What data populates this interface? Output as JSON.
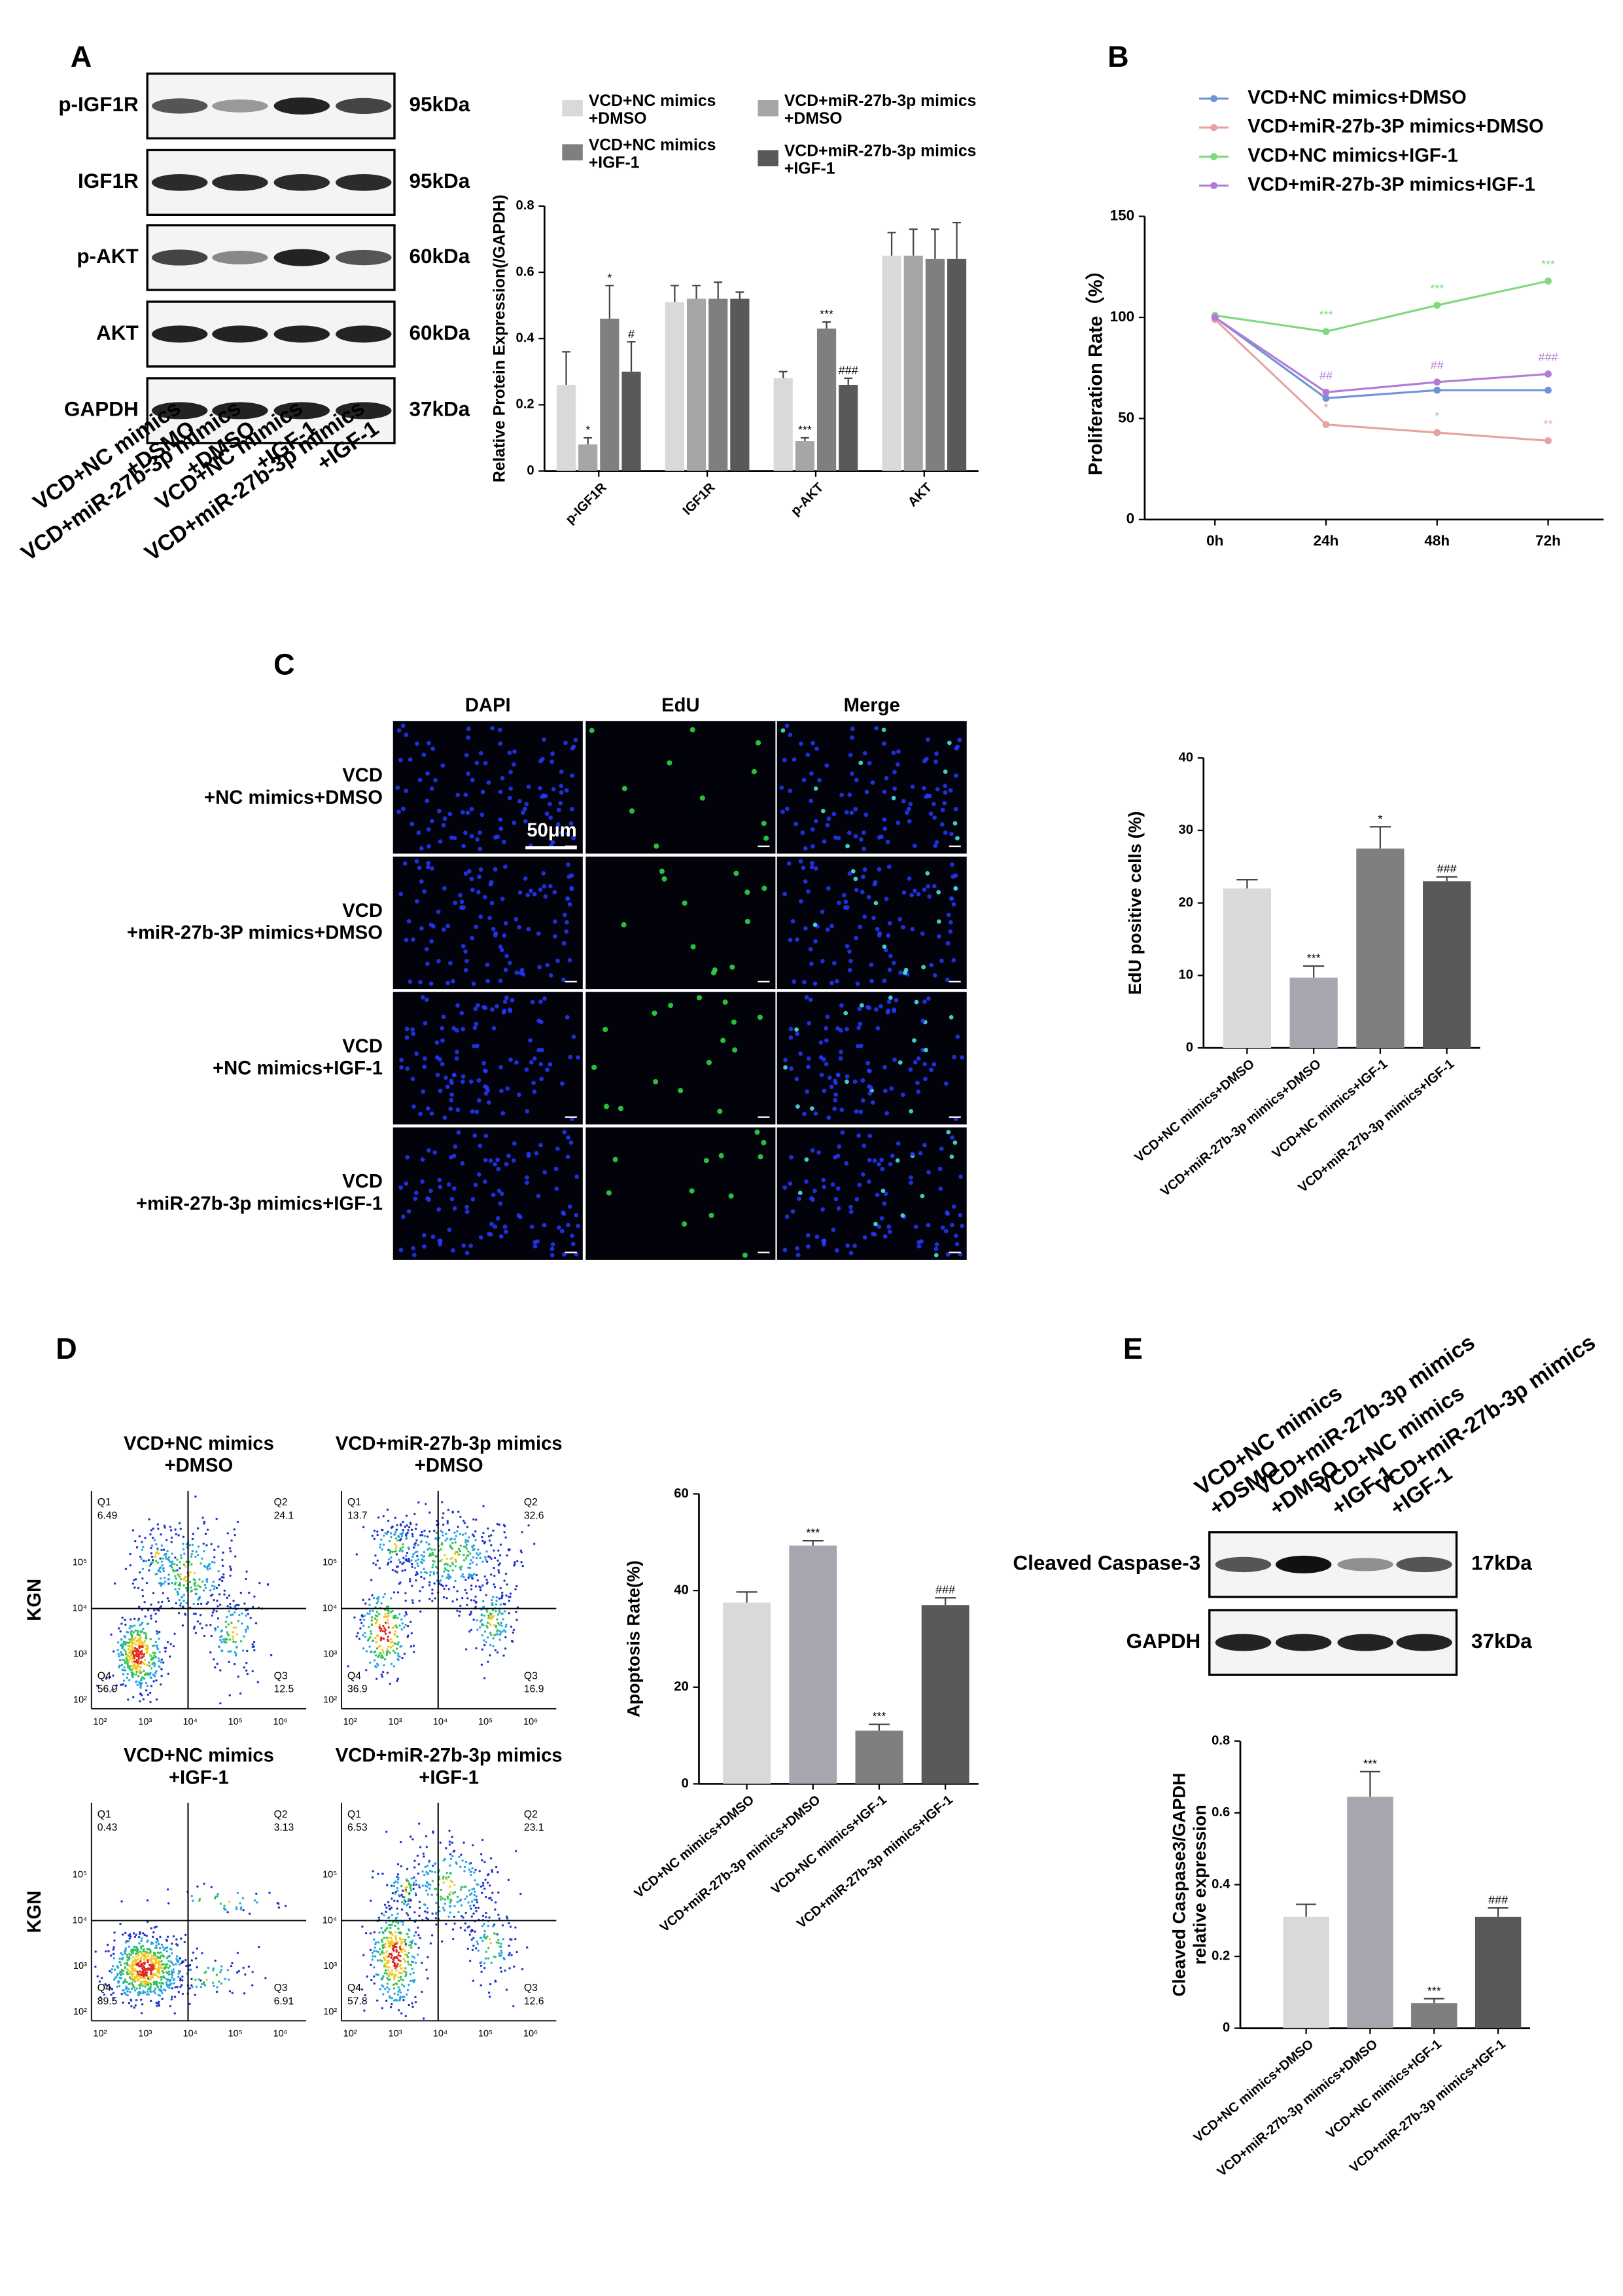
{
  "panel_labels": [
    "A",
    "B",
    "C",
    "D",
    "E"
  ],
  "blot_a": {
    "lanes": [
      "VCD+NC mimics\n+DSMO",
      "VCD+miR-27b-3p mimics\n+DMSO",
      "VCD+NC mimics\n+IGF-1",
      "VCD+miR-27b-3p mimics\n+IGF-1"
    ],
    "rows": [
      {
        "label": "p-IGF1R",
        "size": "95kDa"
      },
      {
        "label": "IGF1R",
        "size": "95kDa"
      },
      {
        "label": "p-AKT",
        "size": "60kDa"
      },
      {
        "label": "AKT",
        "size": "60kDa"
      },
      {
        "label": "GAPDH",
        "size": "37kDa"
      }
    ]
  },
  "microscopy": {
    "columns": [
      "DAPI",
      "EdU",
      "Merge"
    ],
    "rows": [
      "VCD\n+NC mimics+DMSO",
      "VCD\n+miR-27b-3P mimics+DMSO",
      "VCD\n+NC mimics+IGF-1",
      "VCD\n+miR-27b-3p mimics+IGF-1"
    ],
    "scale_bar": "50μm"
  },
  "flow": {
    "row_labels": [
      "KGN",
      "KGN"
    ],
    "axis_ticks": [
      "10²",
      "10³",
      "10⁴",
      "10⁵",
      "10⁶"
    ],
    "plots": [
      {
        "title": "VCD+NC mimics\n+DMSO",
        "quadrants": [
          {
            "label": "Q1",
            "value": 6.49
          },
          {
            "label": "Q2",
            "value": 24.1
          },
          {
            "label": "Q3",
            "value": 12.5
          },
          {
            "label": "Q4",
            "value": 56.9
          }
        ]
      },
      {
        "title": "VCD+miR-27b-3p mimics\n+DMSO",
        "quadrants": [
          {
            "label": "Q1",
            "value": 13.7
          },
          {
            "label": "Q2",
            "value": 32.6
          },
          {
            "label": "Q3",
            "value": 16.9
          },
          {
            "label": "Q4",
            "value": 36.9
          }
        ]
      },
      {
        "title": "VCD+NC mimics\n+IGF-1",
        "quadrants": [
          {
            "label": "Q1",
            "value": 0.43
          },
          {
            "label": "Q2",
            "value": 3.13
          },
          {
            "label": "Q3",
            "value": 6.91
          },
          {
            "label": "Q4",
            "value": 89.5
          }
        ]
      },
      {
        "title": "VCD+miR-27b-3p mimics\n+IGF-1",
        "quadrants": [
          {
            "label": "Q1",
            "value": 6.53
          },
          {
            "label": "Q2",
            "value": 23.1
          },
          {
            "label": "Q3",
            "value": 12.6
          },
          {
            "label": "Q4",
            "value": 57.8
          }
        ]
      }
    ]
  },
  "blot_e": {
    "lanes": [
      "VCD+NC mimics\n+DSMO",
      "VCD+miR-27b-3p mimics\n+DMSO",
      "VCD+NC mimics\n+IGF-1",
      "VCD+miR-27b-3p mimics\n+IGF-1"
    ],
    "rows": [
      {
        "label": "Cleaved Caspase-3",
        "size": "17kDa"
      },
      {
        "label": "GAPDH",
        "size": "37kDa"
      }
    ]
  },
  "chart_data": [
    {
      "type": "bar",
      "ylabel": "Relative Protein Expression(/GAPDH)",
      "categories": [
        "p-IGF1R",
        "IGF1R",
        "p-AKT",
        "AKT"
      ],
      "series": [
        {
          "name": "VCD+NC mimics\n+DMSO",
          "color": "#d9d9d9",
          "values": [
            0.26,
            0.51,
            0.28,
            0.65
          ],
          "errors": [
            0.1,
            0.05,
            0.02,
            0.07
          ],
          "significance": [
            null,
            null,
            null,
            null
          ]
        },
        {
          "name": "VCD+miR-27b-3p mimics\n+DMSO",
          "color": "#a6a6a6",
          "values": [
            0.08,
            0.52,
            0.09,
            0.65
          ],
          "errors": [
            0.02,
            0.04,
            0.01,
            0.08
          ],
          "significance": [
            "*",
            null,
            "***",
            null
          ]
        },
        {
          "name": "VCD+NC mimics\n+IGF-1",
          "color": "#7f7f7f",
          "values": [
            0.46,
            0.52,
            0.43,
            0.64
          ],
          "errors": [
            0.1,
            0.05,
            0.02,
            0.09
          ],
          "significance": [
            "*",
            null,
            "***",
            null
          ]
        },
        {
          "name": "VCD+miR-27b-3p mimics\n+IGF-1",
          "color": "#595959",
          "values": [
            0.3,
            0.52,
            0.26,
            0.64
          ],
          "errors": [
            0.09,
            0.02,
            0.02,
            0.11
          ],
          "significance": [
            "#",
            null,
            "###",
            null
          ]
        }
      ],
      "ylim": [
        0,
        0.8
      ],
      "yticks": [
        0,
        0.2,
        0.4,
        0.6,
        0.8
      ]
    },
    {
      "type": "line",
      "ylabel": "Proliferation Rate（%）",
      "categories": [
        "0h",
        "24h",
        "48h",
        "72h"
      ],
      "series": [
        {
          "name": "VCD+NC mimics+DMSO",
          "color": "#6f94d6",
          "values": [
            100,
            60,
            64,
            64
          ]
        },
        {
          "name": "VCD+miR-27b-3P mimics+DMSO",
          "color": "#e6a3a3",
          "values": [
            99,
            47,
            43,
            39
          ],
          "significance": [
            null,
            "*",
            "*",
            "**"
          ]
        },
        {
          "name": "VCD+NC mimics+IGF-1",
          "color": "#80d880",
          "values": [
            101,
            93,
            106,
            118
          ],
          "significance": [
            null,
            "***",
            "***",
            "***"
          ]
        },
        {
          "name": "VCD+miR-27b-3P mimics+IGF-1",
          "color": "#b57ad6",
          "values": [
            100,
            63,
            68,
            72
          ],
          "significance": [
            null,
            "##",
            "##",
            "###"
          ]
        }
      ],
      "ylim": [
        0,
        150
      ],
      "yticks": [
        0,
        50,
        100,
        150
      ]
    },
    {
      "type": "bar",
      "ylabel": "EdU positive cells (%)",
      "categories": [
        "VCD+NC mimics+DMSO",
        "VCD+miR-27b-3p mimics+DMSO",
        "VCD+NC mimics+IGF-1",
        "VCD+miR-27b-3p mimics+IGF-1"
      ],
      "values": [
        22,
        9.7,
        27.5,
        23
      ],
      "errors": [
        1.2,
        1.6,
        3,
        0.6
      ],
      "significance": [
        null,
        "***",
        "*",
        "###"
      ],
      "colors": [
        "#d9d9d9",
        "#a6a6ae",
        "#7f7f7f",
        "#595959"
      ],
      "ylim": [
        0,
        40
      ],
      "yticks": [
        0,
        10,
        20,
        30,
        40
      ]
    },
    {
      "type": "bar",
      "ylabel": "Apoptosis Rate(%)",
      "categories": [
        "VCD+NC mimics+DMSO",
        "VCD+miR-27b-3p mimics+DMSO",
        "VCD+NC mimics+IGF-1",
        "VCD+miR-27b-3p mimics+IGF-1"
      ],
      "values": [
        37.5,
        49.3,
        11,
        37
      ],
      "errors": [
        2.2,
        1,
        1.3,
        1.5
      ],
      "significance": [
        null,
        "***",
        "***",
        "###"
      ],
      "colors": [
        "#d9d9d9",
        "#a6a6ae",
        "#7f7f7f",
        "#595959"
      ],
      "ylim": [
        0,
        60
      ],
      "yticks": [
        0,
        20,
        40,
        60
      ]
    },
    {
      "type": "bar",
      "ylabel": "Cleaved Caspase3/GAPDH\nrelative expression",
      "categories": [
        "VCD+NC mimics+DMSO",
        "VCD+miR-27b-3p mimics+DMSO",
        "VCD+NC mimics+IGF-1",
        "VCD+miR-27b-3p mimics+IGF-1"
      ],
      "values": [
        0.31,
        0.645,
        0.07,
        0.31
      ],
      "errors": [
        0.035,
        0.07,
        0.012,
        0.025
      ],
      "significance": [
        null,
        "***",
        "***",
        "###"
      ],
      "colors": [
        "#d9d9d9",
        "#a6a6ae",
        "#7f7f7f",
        "#595959"
      ],
      "ylim": [
        0,
        0.8
      ],
      "yticks": [
        0,
        0.2,
        0.4,
        0.6,
        0.8
      ]
    }
  ]
}
